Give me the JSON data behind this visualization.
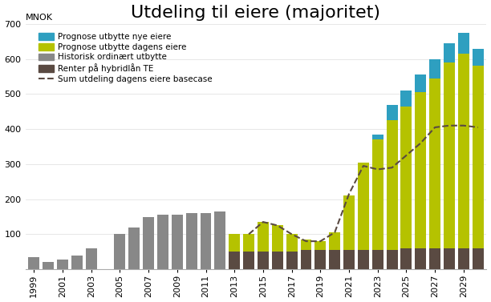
{
  "title": "Utdeling til eiere (majoritet)",
  "ylabel": "MNOK",
  "years": [
    1999,
    2000,
    2001,
    2002,
    2003,
    2004,
    2005,
    2006,
    2007,
    2008,
    2009,
    2010,
    2011,
    2012,
    2013,
    2014,
    2015,
    2016,
    2017,
    2018,
    2019,
    2020,
    2021,
    2022,
    2023,
    2024,
    2025,
    2026,
    2027,
    2028,
    2029,
    2030
  ],
  "hist_ordinary": [
    35,
    22,
    28,
    40,
    60,
    0,
    100,
    120,
    150,
    155,
    155,
    160,
    160,
    165,
    0,
    0,
    0,
    0,
    0,
    0,
    0,
    0,
    0,
    0,
    0,
    0,
    0,
    0,
    0,
    0,
    0,
    0
  ],
  "renter_hybrid": [
    0,
    0,
    0,
    0,
    0,
    0,
    0,
    0,
    0,
    0,
    0,
    0,
    0,
    0,
    50,
    50,
    50,
    50,
    50,
    55,
    55,
    55,
    55,
    55,
    55,
    55,
    60,
    60,
    60,
    60,
    60,
    60
  ],
  "prognose_dagens": [
    0,
    0,
    0,
    0,
    0,
    0,
    0,
    0,
    0,
    0,
    0,
    0,
    0,
    0,
    50,
    50,
    85,
    75,
    50,
    30,
    25,
    50,
    155,
    250,
    315,
    370,
    405,
    445,
    485,
    530,
    555,
    520
  ],
  "prognose_nye": [
    0,
    0,
    0,
    0,
    0,
    0,
    0,
    0,
    0,
    0,
    0,
    0,
    0,
    0,
    0,
    0,
    0,
    0,
    0,
    0,
    0,
    0,
    0,
    0,
    15,
    45,
    45,
    50,
    55,
    55,
    60,
    50
  ],
  "dashed_line": {
    "years": [
      2014,
      2015,
      2016,
      2017,
      2018,
      2019,
      2020,
      2021,
      2022,
      2023,
      2024,
      2025,
      2026,
      2027,
      2028,
      2029,
      2030
    ],
    "values": [
      100,
      135,
      125,
      100,
      80,
      80,
      105,
      215,
      295,
      285,
      290,
      325,
      360,
      405,
      410,
      410,
      405
    ]
  },
  "colors": {
    "hist_ordinary": "#888888",
    "renter_hybrid": "#5a4a42",
    "prognose_dagens": "#b5c200",
    "prognose_nye": "#2e9fc0",
    "dashed_line": "#5a4a42"
  },
  "legend_labels": [
    "Prognose utbytte nye eiere",
    "Prognose utbytte dagens eiere",
    "Historisk ordinært utbytte",
    "Renter på hybridlån TE",
    "Sum utdeling dagens eiere basecase"
  ],
  "xtick_years": [
    1999,
    2001,
    2003,
    2005,
    2007,
    2009,
    2011,
    2013,
    2015,
    2017,
    2019,
    2021,
    2023,
    2025,
    2027,
    2029
  ],
  "ylim": [
    0,
    700
  ],
  "yticks": [
    0,
    100,
    200,
    300,
    400,
    500,
    600,
    700
  ],
  "background_color": "#ffffff",
  "title_fontsize": 16,
  "tick_fontsize": 8,
  "legend_fontsize": 7.5
}
